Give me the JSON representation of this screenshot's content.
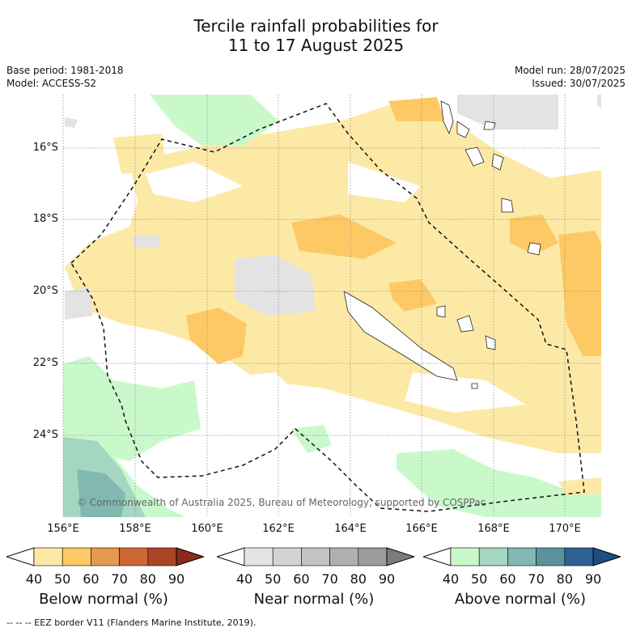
{
  "title_line1": "Tercile rainfall probabilities for",
  "title_line2": "11 to 17 August 2025",
  "base_period": "Base period: 1981-2018",
  "model": "Model: ACCESS-S2",
  "model_run": "Model run: 28/07/2025",
  "issued": "Issued: 30/07/2025",
  "copyright": "© Commonwealth of Australia 2025, Bureau of Meteorology, supported by COSPPac",
  "footer": "--  --  -- EEZ border V11 (Flanders Marine Institute, 2019).",
  "lat_labels": [
    "16°S",
    "18°S",
    "20°S",
    "22°S",
    "24°S"
  ],
  "lon_labels": [
    "156°E",
    "158°E",
    "160°E",
    "162°E",
    "164°E",
    "166°E",
    "168°E",
    "170°E"
  ],
  "colorbars": [
    {
      "title": "Below normal (%)",
      "ticks": [
        "40",
        "50",
        "60",
        "70",
        "80",
        "90"
      ],
      "colors": [
        "#ffffff",
        "#fde9a6",
        "#fdc965",
        "#e39a4e",
        "#cc6634",
        "#aa4527",
        "#8b2a1a"
      ]
    },
    {
      "title": "Near normal (%)",
      "ticks": [
        "40",
        "50",
        "60",
        "70",
        "80",
        "90"
      ],
      "colors": [
        "#ffffff",
        "#e3e3e3",
        "#d3d3d3",
        "#c3c3c3",
        "#b0b0b0",
        "#9c9c9c",
        "#7c7c7c"
      ]
    },
    {
      "title": "Above normal (%)",
      "ticks": [
        "40",
        "50",
        "60",
        "70",
        "80",
        "90"
      ],
      "colors": [
        "#ffffff",
        "#c9f9cb",
        "#a5d6c0",
        "#82b8b2",
        "#5a929e",
        "#2f6294",
        "#1a4f80"
      ]
    }
  ]
}
